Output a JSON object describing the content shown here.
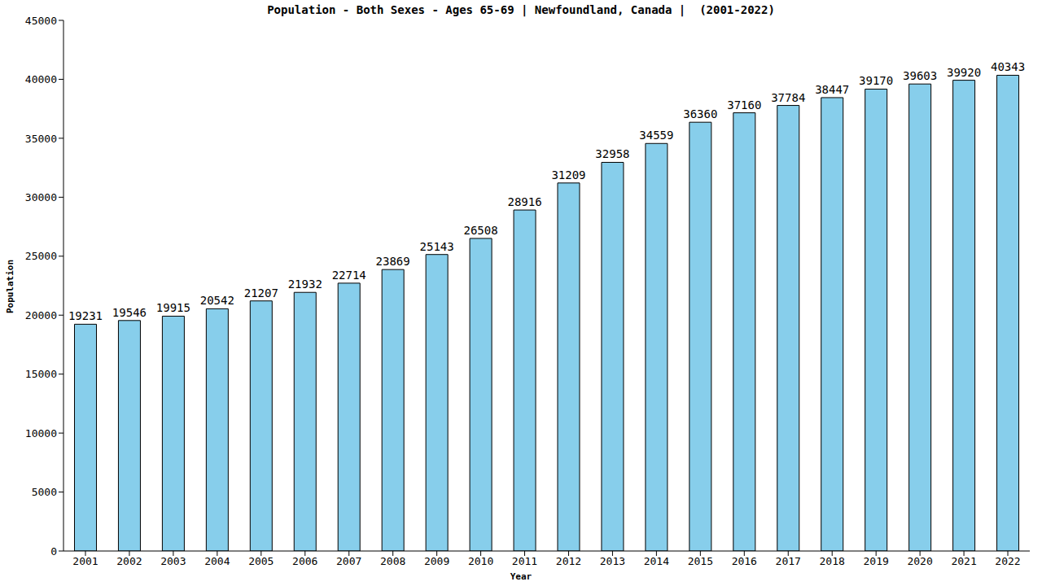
{
  "chart_data": {
    "type": "bar",
    "title": "Population - Both Sexes - Ages 65-69 | Newfoundland, Canada |  (2001-2022)",
    "x_label": "Year",
    "y_label": "Population",
    "categories": [
      "2001",
      "2002",
      "2003",
      "2004",
      "2005",
      "2006",
      "2007",
      "2008",
      "2009",
      "2010",
      "2011",
      "2012",
      "2013",
      "2014",
      "2015",
      "2016",
      "2017",
      "2018",
      "2019",
      "2020",
      "2021",
      "2022"
    ],
    "values": [
      19231,
      19546,
      19915,
      20542,
      21207,
      21932,
      22714,
      23869,
      25143,
      26508,
      28916,
      31209,
      32958,
      34559,
      36360,
      37160,
      37784,
      38447,
      39170,
      39603,
      39920,
      40343
    ],
    "color": "#87ceeb",
    "ylim": [
      0,
      45000
    ],
    "yticks": [
      0,
      5000,
      10000,
      15000,
      20000,
      25000,
      30000,
      35000,
      40000,
      45000
    ],
    "grid": false,
    "data_labels": true
  }
}
